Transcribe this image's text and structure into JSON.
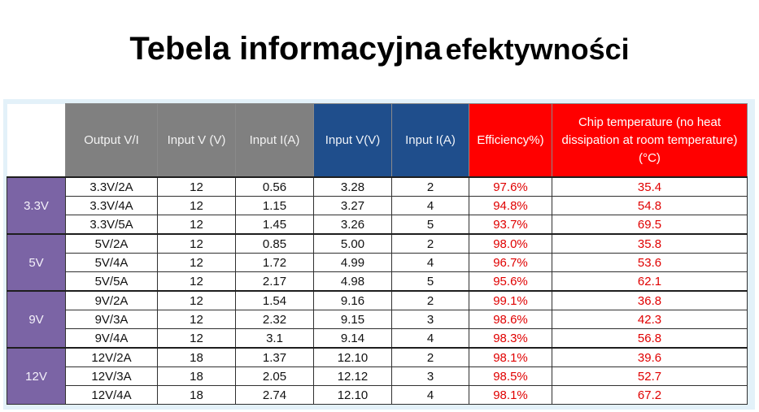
{
  "title": {
    "main": "Tebela informacyjna",
    "accent": "efektywności"
  },
  "chart_data": {
    "type": "table",
    "columns": [
      "",
      "Output V/I",
      "Input V (V)",
      "Input I(A)",
      "Input V(V)",
      "Input I(A)",
      "Efficiency%)",
      "Chip temperature (no heat dissipation at room temperature) (°C)"
    ],
    "header_colors": {
      "gray": "#808080",
      "blue": "#1f4e8c",
      "red": "#ff0000",
      "group": "#7b64a5"
    },
    "groups": [
      {
        "label": "3.3V",
        "rows": [
          [
            "3.3V/2A",
            "12",
            "0.56",
            "3.28",
            "2",
            "97.6%",
            "35.4"
          ],
          [
            "3.3V/4A",
            "12",
            "1.15",
            "3.27",
            "4",
            "94.8%",
            "54.8"
          ],
          [
            "3.3V/5A",
            "12",
            "1.45",
            "3.26",
            "5",
            "93.7%",
            "69.5"
          ]
        ]
      },
      {
        "label": "5V",
        "rows": [
          [
            "5V/2A",
            "12",
            "0.85",
            "5.00",
            "2",
            "98.0%",
            "35.8"
          ],
          [
            "5V/4A",
            "12",
            "1.72",
            "4.99",
            "4",
            "96.7%",
            "53.6"
          ],
          [
            "5V/5A",
            "12",
            "2.17",
            "4.98",
            "5",
            "95.6%",
            "62.1"
          ]
        ]
      },
      {
        "label": "9V",
        "rows": [
          [
            "9V/2A",
            "12",
            "1.54",
            "9.16",
            "2",
            "99.1%",
            "36.8"
          ],
          [
            "9V/3A",
            "12",
            "2.32",
            "9.15",
            "3",
            "98.6%",
            "42.3"
          ],
          [
            "9V/4A",
            "12",
            "3.1",
            "9.14",
            "4",
            "98.3%",
            "56.8"
          ]
        ]
      },
      {
        "label": "12V",
        "rows": [
          [
            "12V/2A",
            "18",
            "1.37",
            "12.10",
            "2",
            "98.1%",
            "39.6"
          ],
          [
            "12V/3A",
            "18",
            "2.05",
            "12.12",
            "3",
            "98.5%",
            "52.7"
          ],
          [
            "12V/4A",
            "18",
            "2.74",
            "12.10",
            "4",
            "98.1%",
            "67.2"
          ]
        ]
      }
    ]
  }
}
